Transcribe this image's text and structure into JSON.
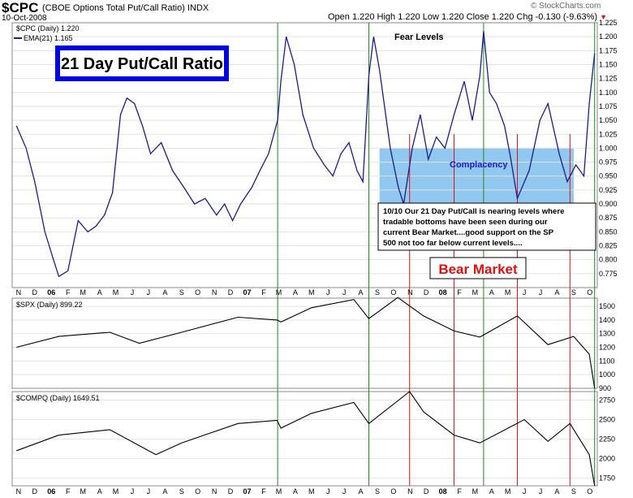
{
  "header": {
    "symbol": "$CPC",
    "description": "(CBOE Options Total Put/Call Ratio) INDX",
    "date": "10-Oct-2008",
    "ohlc": "Open 1.220  High 1.220  Low 1.220  Close 1.220  Chg -0.130 (-9.63%)",
    "brand": "© StockCharts.com"
  },
  "colors": {
    "cpc": "#1c1c8c",
    "index": "#000000",
    "green_line": "#1e8a1e",
    "red_line": "#dd1111",
    "zone": "#90c8f0",
    "title_box": "#0000dd"
  },
  "icons": [
    "down-triangle-icon"
  ],
  "annotations": {
    "title": "21 Day Put/Call Ratio",
    "fear": "Fear Levels",
    "complacency": "Complacency",
    "note": [
      "10/10  Our 21 Day Put/Call is nearing levels where",
      "tradable bottoms have been seen during our",
      "current Bear Market....good support on the SP",
      "500 not too far below current levels...."
    ],
    "bear": "Bear Market"
  },
  "chart_data": [
    {
      "type": "line",
      "legend": [
        "$CPC (Daily) 1.220",
        "EMA(21) 1.165"
      ],
      "ylim": [
        0.75,
        1.225
      ],
      "yticks": [
        0.775,
        0.8,
        0.825,
        0.85,
        0.875,
        0.9,
        0.925,
        0.95,
        0.975,
        1.0,
        1.025,
        1.05,
        1.075,
        1.1,
        1.125,
        1.15,
        1.175,
        1.2,
        1.225
      ],
      "complacency_zone": [
        0.89,
        1.0
      ],
      "x": [
        "2005-10-28",
        "2005-11-15",
        "2005-12-01",
        "2005-12-20",
        "2006-01-05",
        "2006-01-15",
        "2006-02-01",
        "2006-02-20",
        "2006-03-10",
        "2006-03-25",
        "2006-04-10",
        "2006-04-25",
        "2006-05-10",
        "2006-05-22",
        "2006-06-05",
        "2006-06-20",
        "2006-07-05",
        "2006-07-25",
        "2006-08-15",
        "2006-09-05",
        "2006-09-25",
        "2006-10-15",
        "2006-11-05",
        "2006-11-20",
        "2006-12-05",
        "2006-12-20",
        "2007-01-10",
        "2007-01-25",
        "2007-02-10",
        "2007-02-27",
        "2007-03-05",
        "2007-03-15",
        "2007-03-30",
        "2007-04-15",
        "2007-05-05",
        "2007-05-25",
        "2007-06-10",
        "2007-06-25",
        "2007-07-10",
        "2007-07-25",
        "2007-08-05",
        "2007-08-16",
        "2007-08-25",
        "2007-09-05",
        "2007-09-25",
        "2007-10-10",
        "2007-10-20",
        "2007-11-05",
        "2007-11-20",
        "2007-12-05",
        "2007-12-20",
        "2008-01-05",
        "2008-01-22",
        "2008-02-10",
        "2008-02-25",
        "2008-03-10",
        "2008-03-17",
        "2008-03-28",
        "2008-04-10",
        "2008-04-25",
        "2008-05-05",
        "2008-05-19",
        "2008-06-10",
        "2008-06-30",
        "2008-07-15",
        "2008-08-05",
        "2008-08-20",
        "2008-09-05",
        "2008-09-20",
        "2008-09-30",
        "2008-10-10"
      ],
      "y": [
        1.04,
        1.0,
        0.94,
        0.85,
        0.8,
        0.77,
        0.78,
        0.87,
        0.85,
        0.86,
        0.88,
        0.92,
        1.06,
        1.09,
        1.08,
        1.04,
        0.99,
        1.01,
        0.96,
        0.93,
        0.9,
        0.91,
        0.88,
        0.9,
        0.87,
        0.9,
        0.93,
        0.96,
        0.99,
        1.05,
        1.12,
        1.2,
        1.15,
        1.06,
        1.0,
        0.97,
        0.95,
        0.99,
        1.01,
        0.96,
        0.94,
        1.13,
        1.2,
        1.14,
        1.0,
        0.93,
        0.9,
        1.0,
        1.06,
        0.98,
        1.02,
        1.0,
        1.06,
        1.12,
        1.05,
        1.13,
        1.21,
        1.1,
        1.08,
        1.04,
        0.99,
        0.91,
        0.96,
        1.05,
        1.08,
        0.99,
        0.94,
        0.97,
        0.95,
        1.08,
        1.17
      ]
    },
    {
      "type": "line",
      "legend": [
        "$SPX (Daily) 899.22"
      ],
      "ylim": [
        900,
        1560
      ],
      "yticks": [
        900,
        1000,
        1100,
        1200,
        1300,
        1400,
        1500
      ],
      "x": [
        "2005-10-28",
        "2006-01-15",
        "2006-04-20",
        "2006-06-14",
        "2006-09-01",
        "2006-12-15",
        "2007-02-26",
        "2007-03-05",
        "2007-05-01",
        "2007-07-19",
        "2007-08-16",
        "2007-10-09",
        "2007-11-26",
        "2008-01-22",
        "2008-03-10",
        "2008-05-19",
        "2008-07-15",
        "2008-09-01",
        "2008-09-30",
        "2008-10-10"
      ],
      "y": [
        1200,
        1280,
        1310,
        1230,
        1310,
        1420,
        1400,
        1385,
        1490,
        1550,
        1410,
        1565,
        1430,
        1320,
        1275,
        1430,
        1220,
        1280,
        1150,
        900
      ]
    },
    {
      "type": "line",
      "legend": [
        "$COMPQ (Daily) 1649.51"
      ],
      "ylim": [
        1649,
        2860
      ],
      "yticks": [
        1750,
        2000,
        2250,
        2500,
        2750
      ],
      "x": [
        "2005-10-28",
        "2006-01-15",
        "2006-04-20",
        "2006-07-15",
        "2006-09-01",
        "2006-12-15",
        "2007-02-26",
        "2007-03-05",
        "2007-05-01",
        "2007-07-19",
        "2007-08-16",
        "2007-10-31",
        "2007-11-26",
        "2008-01-22",
        "2008-03-10",
        "2008-06-01",
        "2008-07-15",
        "2008-08-25",
        "2008-09-30",
        "2008-10-10"
      ],
      "y": [
        2100,
        2300,
        2370,
        2050,
        2200,
        2450,
        2490,
        2390,
        2580,
        2720,
        2450,
        2860,
        2600,
        2300,
        2200,
        2500,
        2220,
        2450,
        2050,
        1649
      ]
    }
  ],
  "x_axis": {
    "months": [
      "N",
      "D",
      "06",
      "F",
      "M",
      "A",
      "M",
      "J",
      "J",
      "A",
      "S",
      "O",
      "N",
      "D",
      "07",
      "F",
      "M",
      "A",
      "M",
      "J",
      "J",
      "A",
      "S",
      "O",
      "N",
      "D",
      "08",
      "F",
      "M",
      "A",
      "M",
      "J",
      "J",
      "A",
      "S",
      "O"
    ],
    "vlines_green": [
      "2007-02-27",
      "2007-08-16",
      "2008-03-17",
      "2008-10-10"
    ],
    "vlines_red": [
      "2007-10-31",
      "2008-01-22",
      "2008-05-19",
      "2008-08-25"
    ]
  }
}
